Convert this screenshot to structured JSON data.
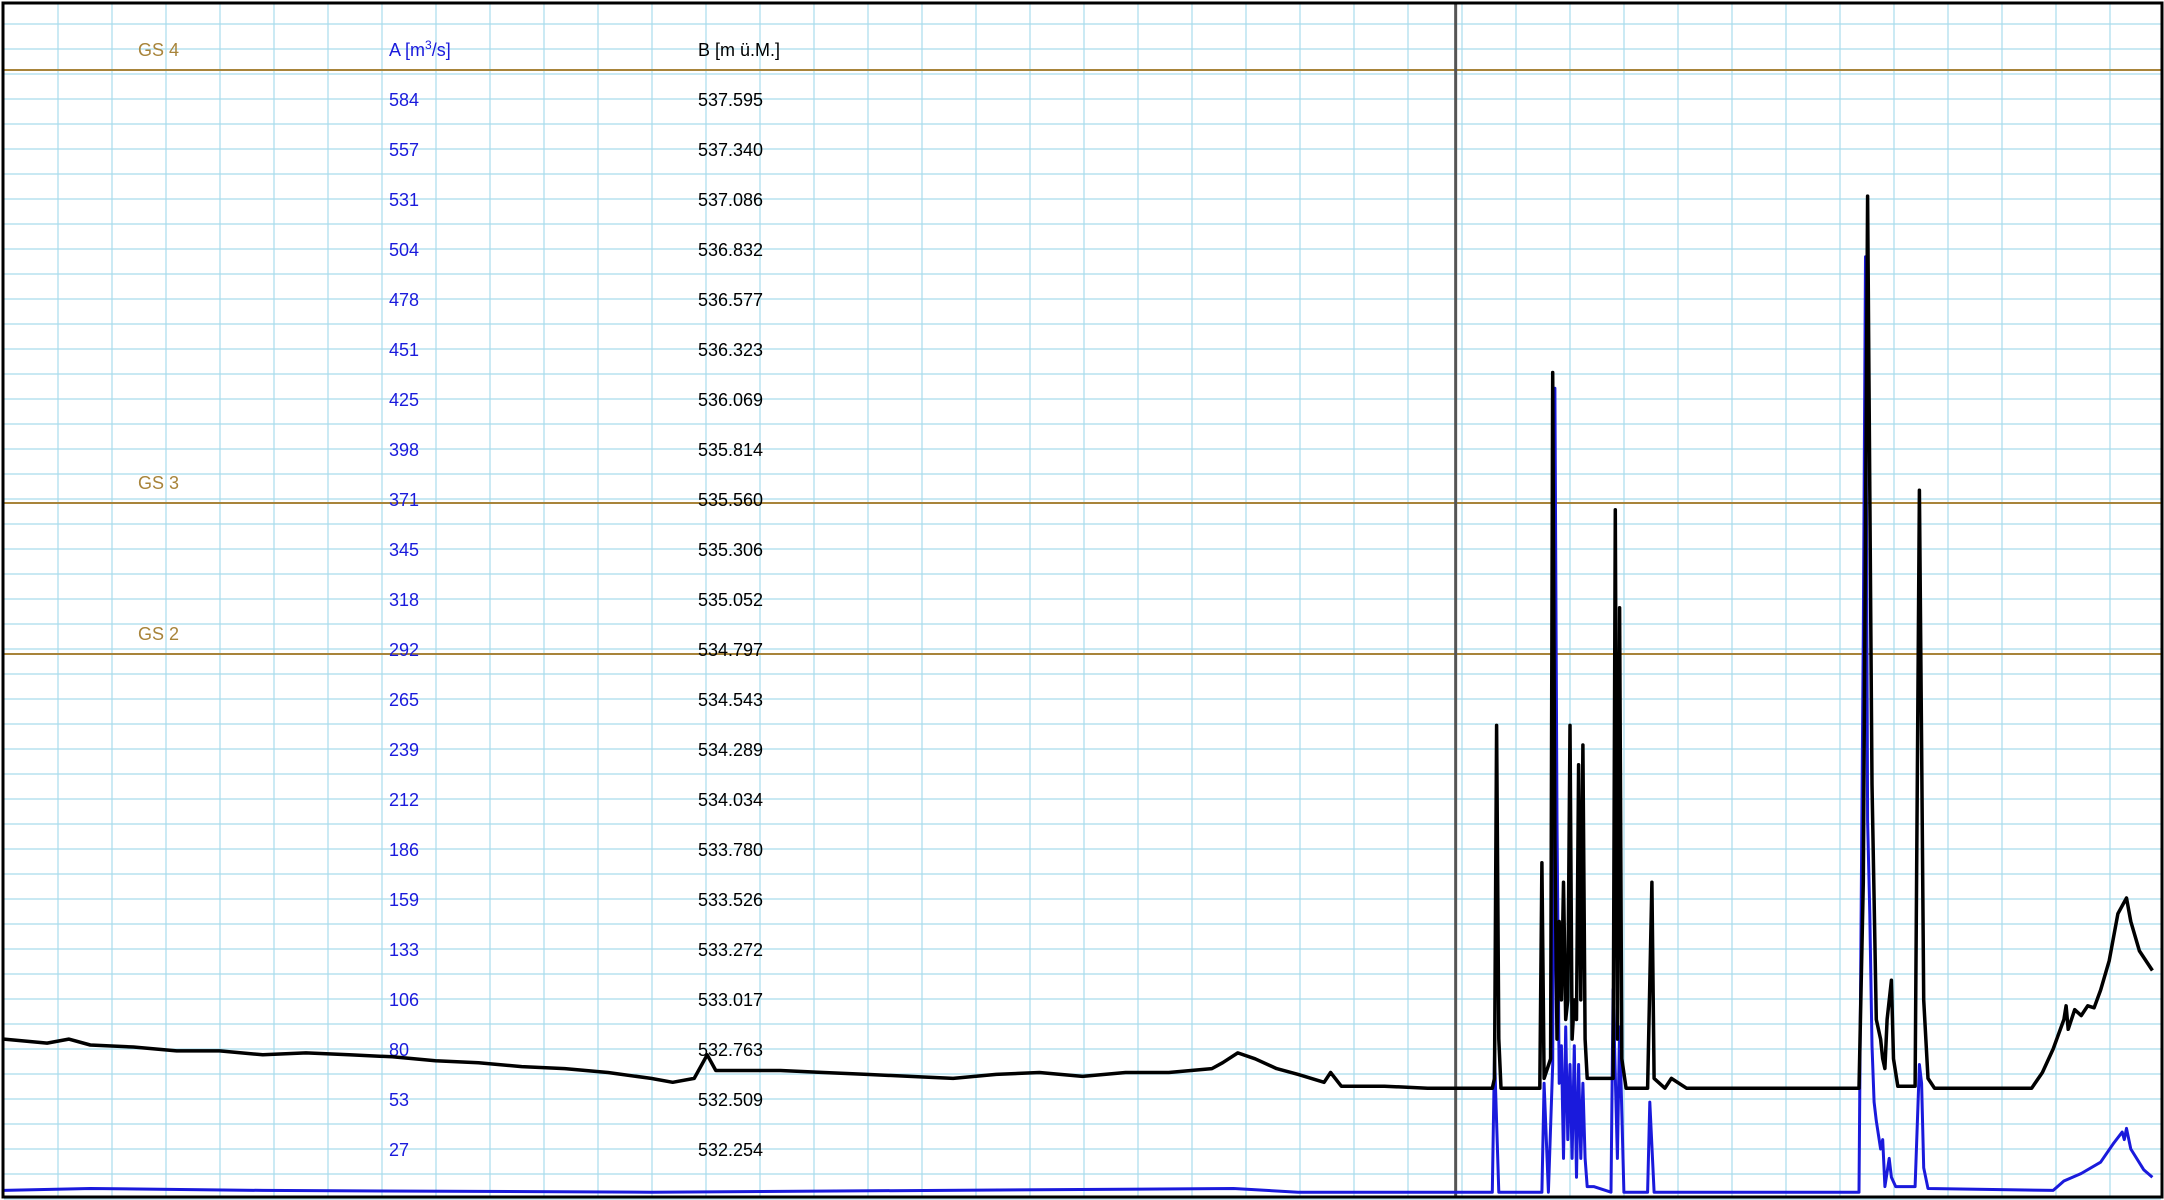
{
  "chart_data": {
    "type": "line",
    "axis_a": {
      "label_main": "A [m",
      "label_sup": "3",
      "label_tail": "/s]",
      "ticks": [
        "584",
        "557",
        "531",
        "504",
        "478",
        "451",
        "425",
        "398",
        "371",
        "345",
        "318",
        "292",
        "265",
        "239",
        "212",
        "186",
        "159",
        "133",
        "106",
        "80",
        "53",
        "27"
      ],
      "min": 0,
      "max": 584,
      "color": "#1a1adc"
    },
    "axis_b": {
      "label": "B [m ü.M.]",
      "ticks": [
        "537.595",
        "537.340",
        "537.086",
        "536.832",
        "536.577",
        "536.323",
        "536.069",
        "535.814",
        "535.560",
        "535.306",
        "535.052",
        "534.797",
        "534.543",
        "534.289",
        "534.034",
        "533.780",
        "533.526",
        "533.272",
        "533.017",
        "532.763",
        "532.509",
        "532.254"
      ],
      "min": 532.0,
      "max": 537.595,
      "color": "#000000"
    },
    "thresholds": [
      {
        "label": "GS 4",
        "value_a": 584
      },
      {
        "label": "GS 3",
        "value_a": 371
      },
      {
        "label": "GS 2",
        "value_a": 297
      }
    ],
    "threshold_color": "#a8843a",
    "grid": true,
    "grid_color": "#a9dcec",
    "x_range": [
      0,
      1000
    ],
    "marker_x": 673,
    "series": [
      {
        "key": "A",
        "color": "#1a1adc",
        "points": [
          [
            0,
            3
          ],
          [
            40,
            4
          ],
          [
            120,
            3
          ],
          [
            300,
            2
          ],
          [
            570,
            4
          ],
          [
            600,
            2
          ],
          [
            672,
            2
          ],
          [
            690,
            2
          ],
          [
            691,
            75
          ],
          [
            693,
            2
          ],
          [
            713,
            2
          ],
          [
            714,
            60
          ],
          [
            716,
            2
          ],
          [
            718,
            70
          ],
          [
            719,
            430
          ],
          [
            720,
            200
          ],
          [
            721,
            60
          ],
          [
            722,
            80
          ],
          [
            723,
            20
          ],
          [
            724,
            90
          ],
          [
            725,
            30
          ],
          [
            726,
            70
          ],
          [
            727,
            20
          ],
          [
            728,
            80
          ],
          [
            729,
            10
          ],
          [
            730,
            70
          ],
          [
            731,
            20
          ],
          [
            732,
            60
          ],
          [
            733,
            20
          ],
          [
            734,
            5
          ],
          [
            737,
            5
          ],
          [
            745,
            2
          ],
          [
            746,
            110
          ],
          [
            748,
            20
          ],
          [
            749,
            90
          ],
          [
            751,
            2
          ],
          [
            762,
            2
          ],
          [
            763,
            50
          ],
          [
            765,
            2
          ],
          [
            860,
            2
          ],
          [
            862,
            300
          ],
          [
            863,
            500
          ],
          [
            864,
            200
          ],
          [
            865,
            150
          ],
          [
            866,
            80
          ],
          [
            867,
            50
          ],
          [
            868,
            40
          ],
          [
            870,
            25
          ],
          [
            871,
            30
          ],
          [
            872,
            5
          ],
          [
            874,
            20
          ],
          [
            875,
            10
          ],
          [
            877,
            5
          ],
          [
            886,
            5
          ],
          [
            888,
            70
          ],
          [
            889,
            60
          ],
          [
            890,
            15
          ],
          [
            892,
            4
          ],
          [
            950,
            3
          ],
          [
            955,
            8
          ],
          [
            963,
            12
          ],
          [
            972,
            18
          ],
          [
            978,
            28
          ],
          [
            982,
            34
          ],
          [
            983,
            30
          ],
          [
            984,
            36
          ],
          [
            986,
            25
          ],
          [
            992,
            14
          ],
          [
            996,
            10
          ]
        ]
      },
      {
        "key": "B",
        "color": "#000000",
        "points": [
          [
            0,
            532.8
          ],
          [
            10,
            532.79
          ],
          [
            20,
            532.78
          ],
          [
            30,
            532.8
          ],
          [
            40,
            532.77
          ],
          [
            60,
            532.76
          ],
          [
            80,
            532.74
          ],
          [
            100,
            532.74
          ],
          [
            120,
            532.72
          ],
          [
            140,
            532.73
          ],
          [
            160,
            532.72
          ],
          [
            180,
            532.71
          ],
          [
            200,
            532.69
          ],
          [
            220,
            532.68
          ],
          [
            240,
            532.66
          ],
          [
            260,
            532.65
          ],
          [
            280,
            532.63
          ],
          [
            300,
            532.6
          ],
          [
            310,
            532.58
          ],
          [
            320,
            532.6
          ],
          [
            326,
            532.72
          ],
          [
            330,
            532.64
          ],
          [
            360,
            532.64
          ],
          [
            380,
            532.63
          ],
          [
            400,
            532.62
          ],
          [
            420,
            532.61
          ],
          [
            440,
            532.6
          ],
          [
            460,
            532.62
          ],
          [
            480,
            532.63
          ],
          [
            500,
            532.61
          ],
          [
            520,
            532.63
          ],
          [
            540,
            532.63
          ],
          [
            560,
            532.65
          ],
          [
            565,
            532.68
          ],
          [
            572,
            532.73
          ],
          [
            580,
            532.7
          ],
          [
            590,
            532.65
          ],
          [
            600,
            532.62
          ],
          [
            612,
            532.58
          ],
          [
            615,
            532.63
          ],
          [
            620,
            532.56
          ],
          [
            640,
            532.56
          ],
          [
            660,
            532.55
          ],
          [
            680,
            532.55
          ],
          [
            690,
            532.55
          ],
          [
            691,
            532.6
          ],
          [
            692,
            534.4
          ],
          [
            693,
            532.8
          ],
          [
            694,
            532.55
          ],
          [
            700,
            532.55
          ],
          [
            712,
            532.55
          ],
          [
            713,
            533.7
          ],
          [
            714,
            532.6
          ],
          [
            717,
            532.7
          ],
          [
            718,
            536.2
          ],
          [
            719,
            533.8
          ],
          [
            720,
            532.8
          ],
          [
            721,
            533.4
          ],
          [
            722,
            533.0
          ],
          [
            723,
            533.6
          ],
          [
            724,
            532.9
          ],
          [
            725,
            533.0
          ],
          [
            726,
            534.4
          ],
          [
            727,
            532.8
          ],
          [
            728,
            533.0
          ],
          [
            729,
            532.9
          ],
          [
            730,
            534.2
          ],
          [
            731,
            533.0
          ],
          [
            732,
            534.3
          ],
          [
            733,
            532.8
          ],
          [
            734,
            532.6
          ],
          [
            740,
            532.6
          ],
          [
            746,
            532.6
          ],
          [
            747,
            535.5
          ],
          [
            748,
            532.8
          ],
          [
            749,
            535.0
          ],
          [
            750,
            532.7
          ],
          [
            752,
            532.55
          ],
          [
            762,
            532.55
          ],
          [
            764,
            533.6
          ],
          [
            765,
            532.6
          ],
          [
            770,
            532.55
          ],
          [
            773,
            532.6
          ],
          [
            780,
            532.55
          ],
          [
            860,
            532.55
          ],
          [
            862,
            533.6
          ],
          [
            864,
            537.1
          ],
          [
            866,
            534.1
          ],
          [
            868,
            532.9
          ],
          [
            870,
            532.8
          ],
          [
            871,
            532.7
          ],
          [
            872,
            532.65
          ],
          [
            873,
            532.9
          ],
          [
            875,
            533.1
          ],
          [
            876,
            532.7
          ],
          [
            878,
            532.56
          ],
          [
            886,
            532.56
          ],
          [
            888,
            535.6
          ],
          [
            889,
            534.3
          ],
          [
            890,
            533.0
          ],
          [
            892,
            532.6
          ],
          [
            895,
            532.55
          ],
          [
            900,
            532.55
          ],
          [
            940,
            532.55
          ],
          [
            945,
            532.63
          ],
          [
            950,
            532.75
          ],
          [
            955,
            532.9
          ],
          [
            956,
            532.97
          ],
          [
            957,
            532.85
          ],
          [
            960,
            532.95
          ],
          [
            963,
            532.92
          ],
          [
            966,
            532.97
          ],
          [
            969,
            532.96
          ],
          [
            972,
            533.05
          ],
          [
            976,
            533.2
          ],
          [
            980,
            533.44
          ],
          [
            983,
            533.5
          ],
          [
            984,
            533.52
          ],
          [
            986,
            533.4
          ],
          [
            990,
            533.25
          ],
          [
            996,
            533.15
          ]
        ]
      }
    ]
  }
}
